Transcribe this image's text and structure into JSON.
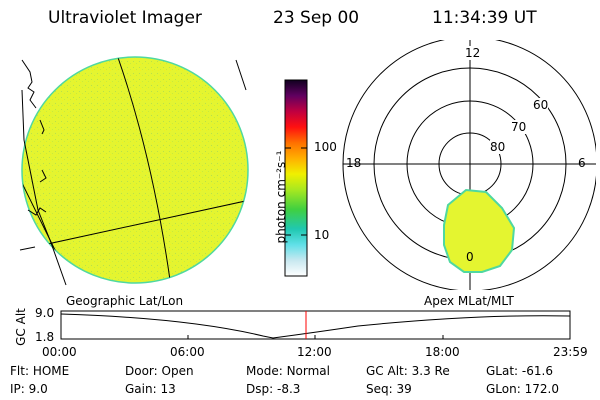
{
  "header": {
    "instrument": "Ultraviolet Imager",
    "date": "23 Sep 00",
    "time": "11:34:39 UT"
  },
  "colorbar": {
    "unit_label": "photon cm⁻²s⁻¹",
    "tick_100": "100",
    "tick_10": "10"
  },
  "polar_plot": {
    "mlt_labels": {
      "top": "12",
      "left": "18",
      "right": "6",
      "bottom": "0"
    },
    "mlat_labels": [
      "60",
      "70",
      "80"
    ]
  },
  "timeline": {
    "y_axis_label": "GC Alt",
    "y_ticks": [
      "9.0",
      "1.8"
    ],
    "left_title": "Geographic Lat/Lon",
    "right_title": "Apex MLat/MLT",
    "x_ticks": [
      "00:00",
      "06:00",
      "12:00",
      "18:00",
      "23:59"
    ],
    "current_marker_color": "#ff0000"
  },
  "info_rows": [
    [
      {
        "label": "Flt:",
        "value": "HOME"
      },
      {
        "label": "Door:",
        "value": "Open"
      },
      {
        "label": "Mode:",
        "value": "Normal"
      },
      {
        "label": "GC Alt:",
        "value": "3.3 Re"
      },
      {
        "label": "GLat:",
        "value": "-61.6"
      }
    ],
    [
      {
        "label": "IP:",
        "value": "9.0"
      },
      {
        "label": "Gain:",
        "value": "13"
      },
      {
        "label": "Dsp:",
        "value": "-8.3"
      },
      {
        "label": "Seq:",
        "value": "39"
      },
      {
        "label": "GLon:",
        "value": "172.0"
      }
    ]
  ],
  "colors": {
    "earth_fill": "#e4f530",
    "earth_edge": "#4fd8a0",
    "aurora_fill": "#e4f530"
  }
}
